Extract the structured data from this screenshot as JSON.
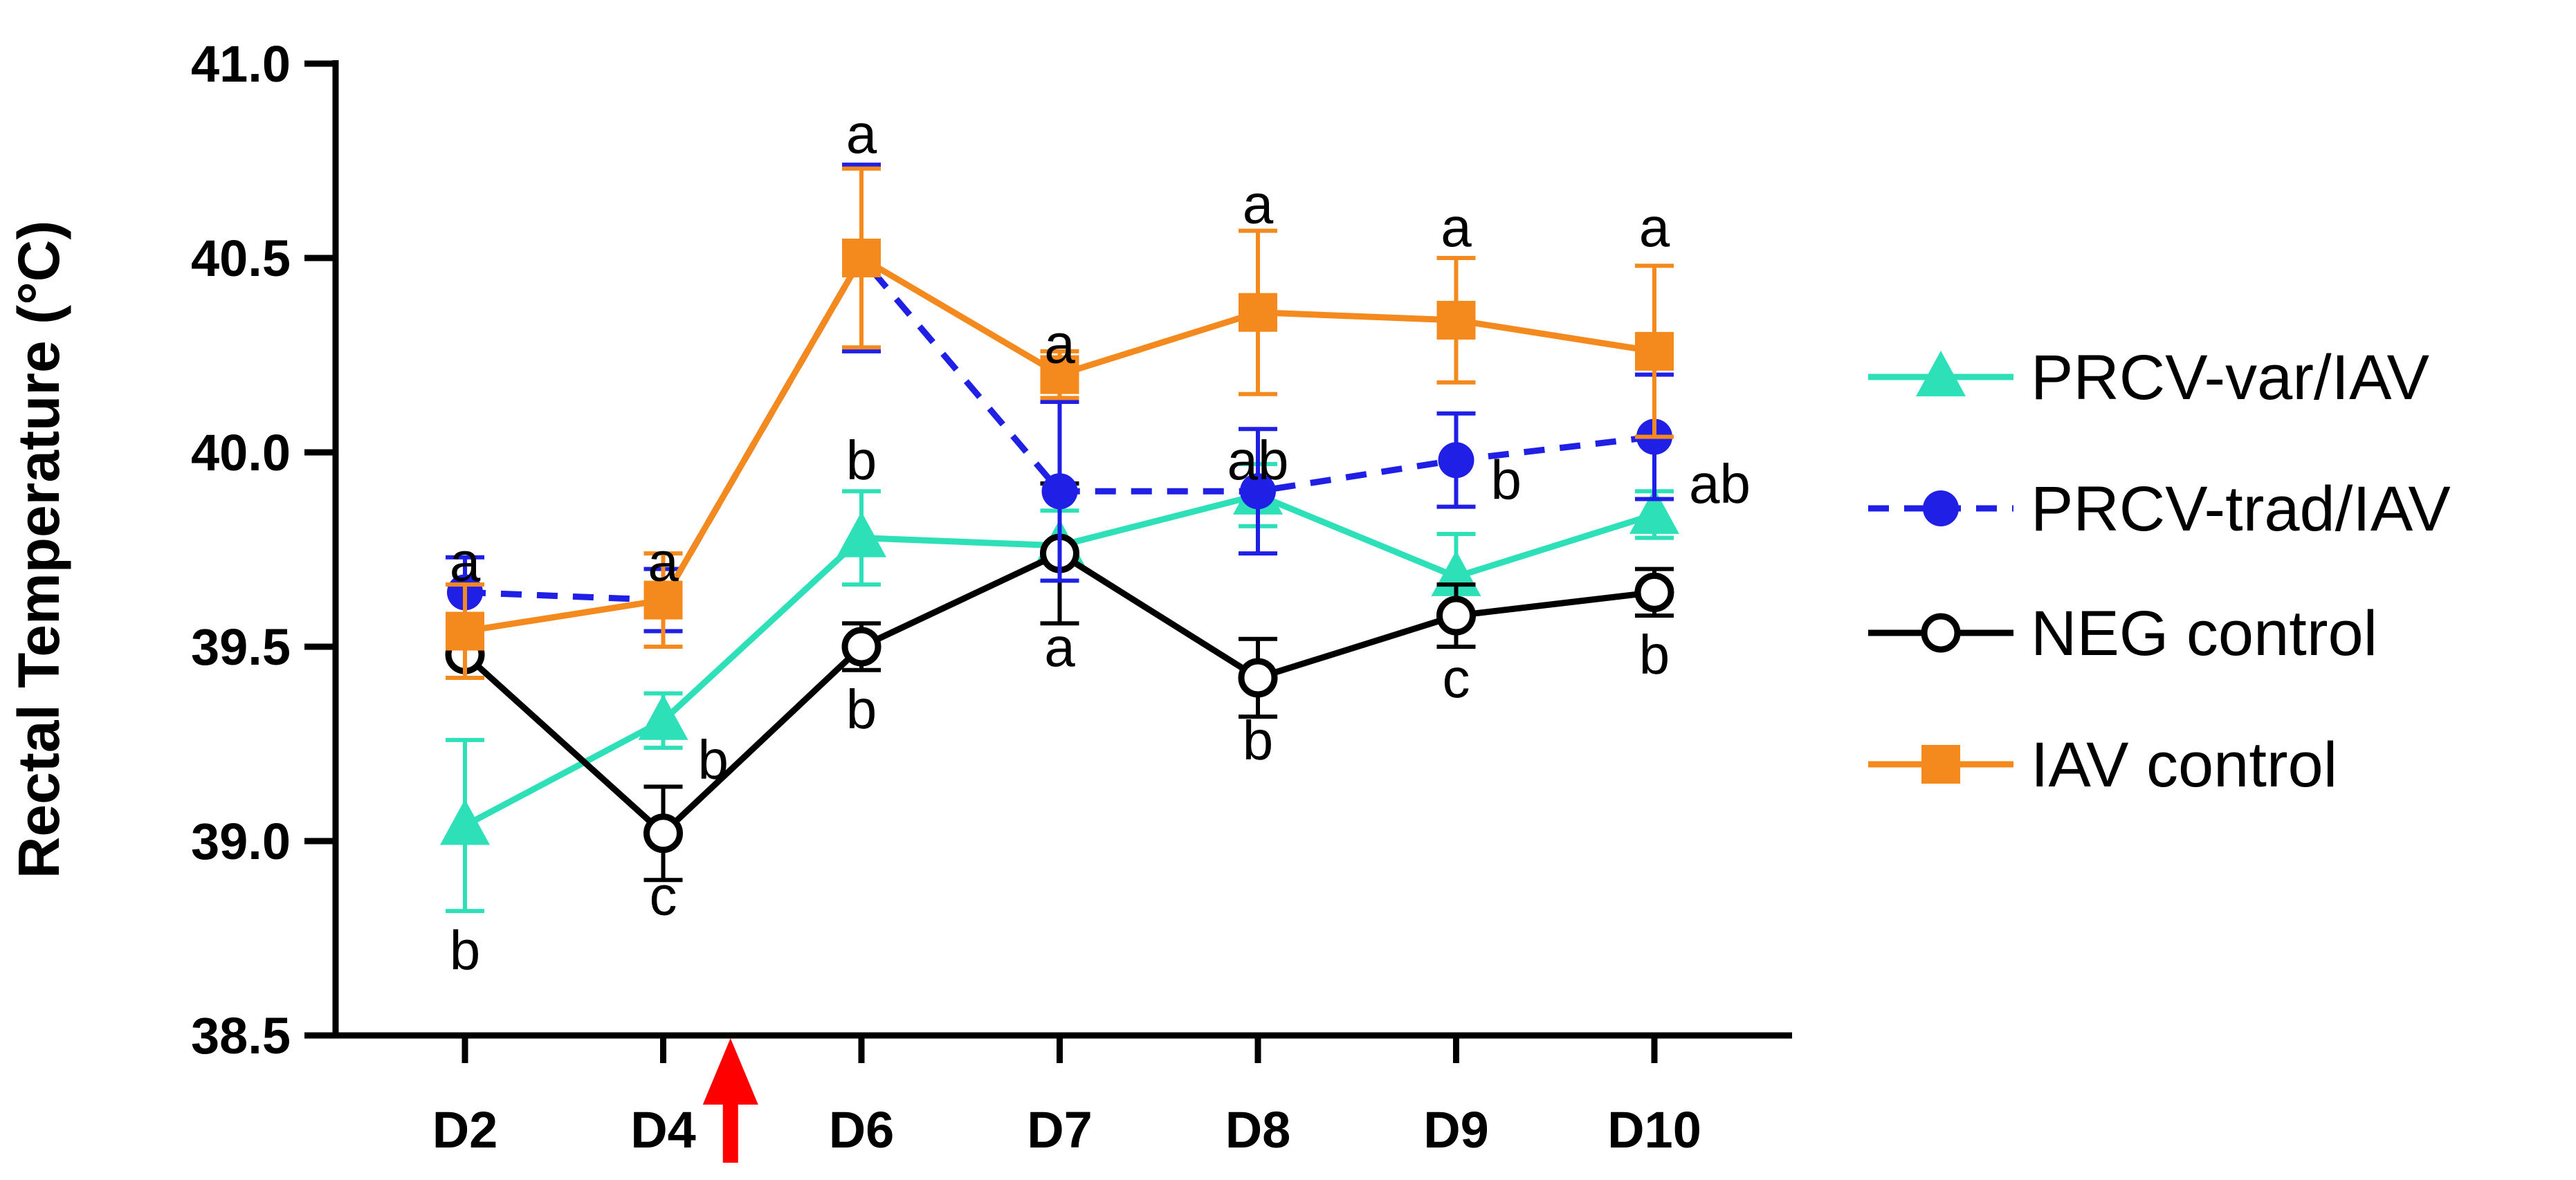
{
  "chart_data": {
    "type": "line",
    "title": "",
    "xlabel": "",
    "ylabel": "Rectal Temperature (°C)",
    "ylim": [
      38.5,
      41.0
    ],
    "yticks": [
      "38.5",
      "39.0",
      "39.5",
      "40.0",
      "40.5",
      "41.0"
    ],
    "categories": [
      "D2",
      "D4",
      "D6",
      "D7",
      "D8",
      "D9",
      "D10"
    ],
    "challenge_marker": {
      "between": [
        "D4",
        "D6"
      ],
      "color": "#ff0000"
    },
    "legend_position": "right",
    "series": [
      {
        "name": "PRCV-var/IAV",
        "color": "#2de0b8",
        "marker": "triangle",
        "dashed": false,
        "values": [
          39.04,
          39.31,
          39.78,
          39.76,
          39.89,
          39.68,
          39.84
        ],
        "errors": [
          0.22,
          0.07,
          0.12,
          0.09,
          0.08,
          0.11,
          0.06
        ]
      },
      {
        "name": "PRCV-trad/IAV",
        "color": "#1f1fe6",
        "marker": "circle",
        "dashed": true,
        "values": [
          39.64,
          39.62,
          40.5,
          39.9,
          39.9,
          39.98,
          40.04
        ],
        "errors": [
          0.09,
          0.08,
          0.24,
          0.23,
          0.16,
          0.12,
          0.16
        ]
      },
      {
        "name": "NEG control",
        "color": "#000000",
        "marker": "open-circle",
        "dashed": false,
        "values": [
          39.48,
          39.02,
          39.5,
          39.74,
          39.42,
          39.58,
          39.64
        ],
        "errors": [
          0.06,
          0.12,
          0.06,
          0.18,
          0.1,
          0.08,
          0.06
        ]
      },
      {
        "name": "IAV control",
        "color": "#f48a1e",
        "marker": "square",
        "dashed": false,
        "values": [
          39.54,
          39.62,
          40.5,
          40.2,
          40.36,
          40.34,
          40.26
        ],
        "errors": [
          0.12,
          0.12,
          0.23,
          0.06,
          0.21,
          0.16,
          0.22
        ]
      }
    ],
    "annotations": [
      {
        "category": "D2",
        "value": 39.72,
        "text": "a"
      },
      {
        "category": "D2",
        "value": 38.72,
        "text": "b"
      },
      {
        "category": "D4",
        "value": 39.72,
        "text": "a"
      },
      {
        "category": "D4",
        "value": 39.21,
        "text": "b",
        "offset": "right"
      },
      {
        "category": "D4",
        "value": 38.86,
        "text": "c"
      },
      {
        "category": "D6",
        "value": 40.82,
        "text": "a"
      },
      {
        "category": "D6",
        "value": 39.98,
        "text": "b"
      },
      {
        "category": "D6",
        "value": 39.34,
        "text": "b"
      },
      {
        "category": "D7",
        "value": 40.28,
        "text": "a"
      },
      {
        "category": "D7",
        "value": 39.5,
        "text": "a"
      },
      {
        "category": "D8",
        "value": 40.64,
        "text": "a"
      },
      {
        "category": "D8",
        "value": 39.98,
        "text": "ab"
      },
      {
        "category": "D8",
        "value": 39.26,
        "text": "b"
      },
      {
        "category": "D9",
        "value": 40.58,
        "text": "a"
      },
      {
        "category": "D9",
        "value": 39.93,
        "text": "b",
        "offset": "right"
      },
      {
        "category": "D9",
        "value": 39.42,
        "text": "c"
      },
      {
        "category": "D10",
        "value": 40.58,
        "text": "a"
      },
      {
        "category": "D10",
        "value": 39.92,
        "text": "ab",
        "offset": "right"
      },
      {
        "category": "D10",
        "value": 39.48,
        "text": "b"
      }
    ]
  }
}
